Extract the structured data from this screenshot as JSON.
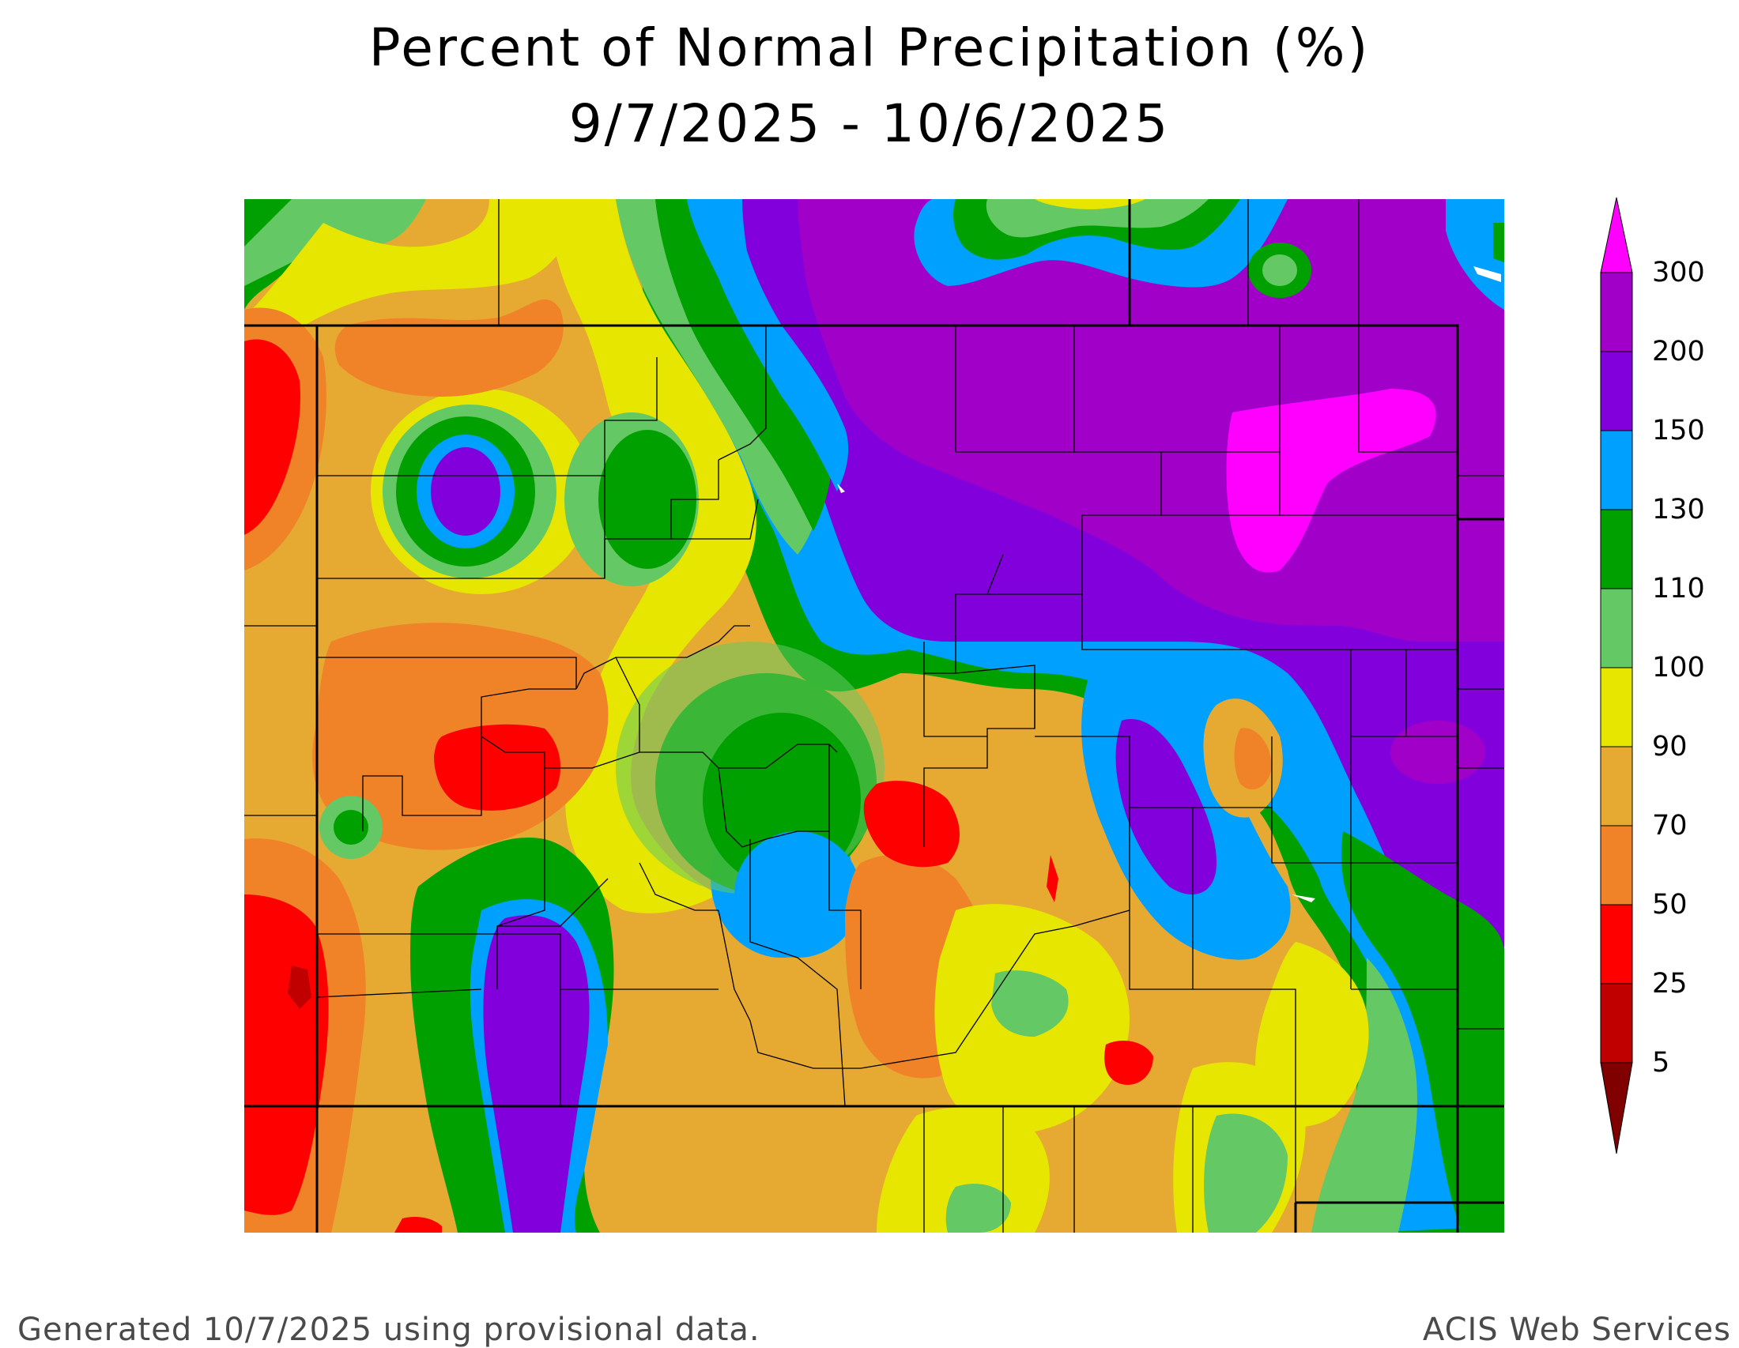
{
  "title": {
    "line1": "Percent of Normal Precipitation (%)",
    "line2": "9/7/2025 - 10/6/2025"
  },
  "legend": {
    "labels": [
      "300",
      "200",
      "150",
      "130",
      "110",
      "100",
      "90",
      "70",
      "50",
      "25",
      "5"
    ],
    "colors": [
      "#FF00FF",
      "#A000C8",
      "#8200DC",
      "#00A0FF",
      "#00A000",
      "#64C864",
      "#E6E600",
      "#E6AA32",
      "#F08228",
      "#FF0000",
      "#C00000",
      "#800000"
    ]
  },
  "footer": {
    "left": "Generated 10/7/2025 using provisional data.",
    "right": "ACIS Web Services"
  }
}
